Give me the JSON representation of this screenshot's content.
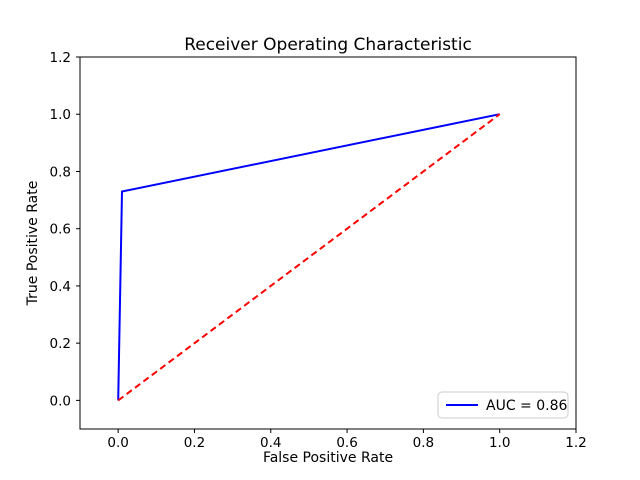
{
  "figure": {
    "background": "#ffffff",
    "text_color": "#000000"
  },
  "chart_data": {
    "type": "line",
    "title": "Receiver Operating Characteristic",
    "xlabel": "False Positive Rate",
    "ylabel": "True Positive Rate",
    "xlim": [
      -0.1,
      1.2
    ],
    "ylim": [
      -0.1,
      1.2
    ],
    "xticks": [
      0.0,
      0.2,
      0.4,
      0.6,
      0.8,
      1.0,
      1.2
    ],
    "yticks": [
      0.0,
      0.2,
      0.4,
      0.6,
      0.8,
      1.0,
      1.2
    ],
    "xtick_labels": [
      "0.0",
      "0.2",
      "0.4",
      "0.6",
      "0.8",
      "1.0",
      "1.2"
    ],
    "ytick_labels": [
      "0.0",
      "0.2",
      "0.4",
      "0.6",
      "0.8",
      "1.0",
      "1.2"
    ],
    "grid": false,
    "auc": 0.86,
    "series": [
      {
        "name": "roc-curve",
        "color": "#0000ff",
        "style": "solid",
        "points": [
          [
            0.0,
            0.0
          ],
          [
            0.01,
            0.73
          ],
          [
            1.0,
            1.0
          ]
        ]
      },
      {
        "name": "chance-diagonal",
        "color": "#ff0000",
        "style": "dashed",
        "points": [
          [
            0.0,
            0.0
          ],
          [
            1.0,
            1.0
          ]
        ]
      }
    ],
    "legend": {
      "position": "lower right",
      "entries": [
        {
          "label": "AUC = 0.86",
          "color": "#0000ff"
        }
      ]
    }
  }
}
